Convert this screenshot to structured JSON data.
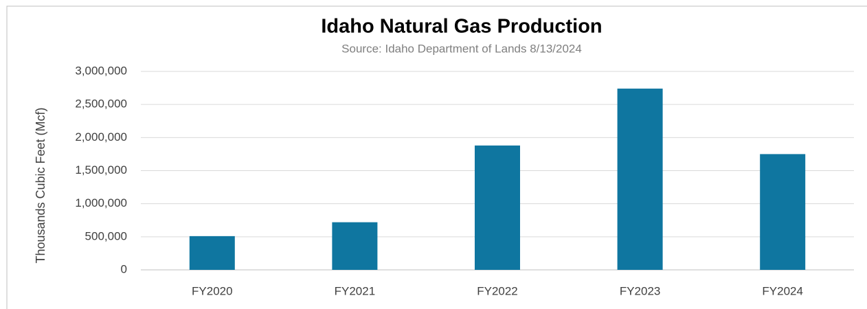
{
  "chart_data": {
    "type": "bar",
    "title": "Idaho Natural Gas Production",
    "subtitle": "Source: Idaho Department of Lands 8/13/2024",
    "y_label": "Thousands Cubic Feet (Mcf)",
    "categories": [
      "FY2020",
      "FY2021",
      "FY2022",
      "FY2023",
      "FY2024"
    ],
    "values": [
      510000,
      720000,
      1880000,
      2740000,
      1750000
    ],
    "color": "#0f76a0",
    "ylim": [
      0,
      3000000
    ],
    "yticks": [
      0,
      {
        "value": 500000,
        "label": "500,000"
      },
      {
        "value": 1000000,
        "label": "1,000,000"
      },
      {
        "value": 1500000,
        "label": "1,500,000"
      },
      {
        "value": 2000000,
        "label": "2,000,000"
      },
      {
        "value": 2500000,
        "label": "2,500,000"
      },
      {
        "value": 3000000,
        "label": "3,000,000"
      }
    ],
    "grid": true
  }
}
